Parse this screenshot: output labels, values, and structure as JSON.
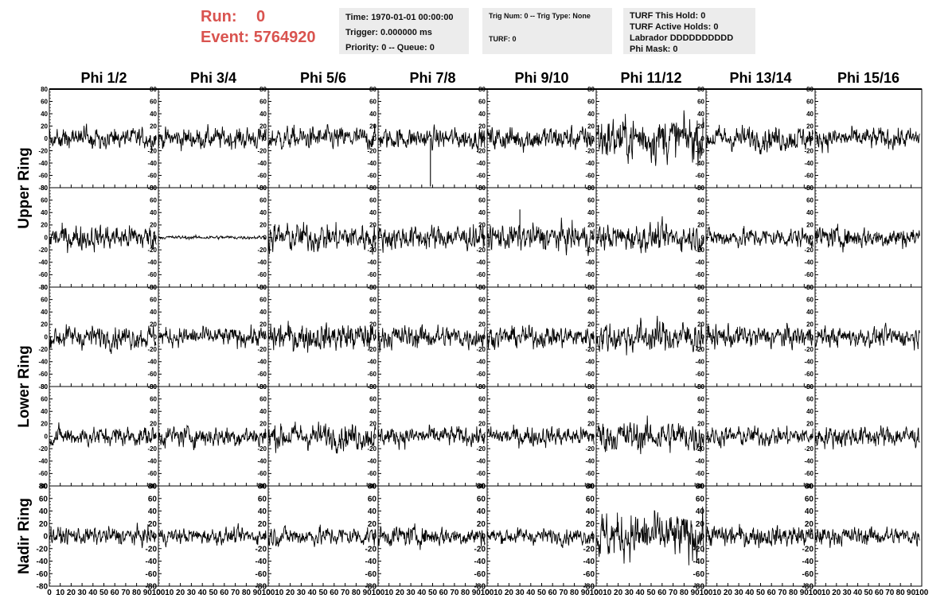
{
  "header": {
    "run_label": "Run:",
    "run_value": "0",
    "event_label": "Event:",
    "event_value": "5764920"
  },
  "info": {
    "time": "Time: 1970-01-01 00:00:00",
    "trigger": "Trigger: 0.000000 ms",
    "priority": "Priority: 0 -- Queue: 0",
    "trig_num": "Trig Num: 0 -- Trig Type: None",
    "turf": "TURF: 0",
    "turf_this_hold": "TURF This Hold: 0",
    "turf_active_holds": "TURF Active Holds: 0",
    "labrador": "Labrador DDDDDDDDDD",
    "phi_mask": "Phi Mask: 0"
  },
  "chart_data": {
    "type": "line",
    "columns": [
      "Phi 1/2",
      "Phi 3/4",
      "Phi 5/6",
      "Phi 7/8",
      "Phi 9/10",
      "Phi 11/12",
      "Phi 13/14",
      "Phi 15/16"
    ],
    "row_groups": [
      "Upper Ring",
      "Lower Ring",
      "Nadir Ring"
    ],
    "rows": 5,
    "row_group_spans": [
      [
        0,
        1
      ],
      [
        2,
        3
      ],
      [
        4,
        4
      ]
    ],
    "xlim": [
      0,
      100
    ],
    "x_ticks": [
      0,
      10,
      20,
      30,
      40,
      50,
      60,
      70,
      80,
      90,
      100
    ],
    "ylim": [
      -80,
      80
    ],
    "y_ticks": [
      -80,
      -60,
      -40,
      -20,
      0,
      20,
      40,
      60,
      80
    ],
    "samples_per_trace": 260,
    "amplitudes": [
      [
        12,
        12,
        13,
        12,
        14,
        25,
        14,
        12
      ],
      [
        14,
        2,
        16,
        14,
        15,
        15,
        11,
        12
      ],
      [
        13,
        11,
        16,
        13,
        12,
        18,
        13,
        11
      ],
      [
        11,
        12,
        15,
        11,
        11,
        18,
        11,
        12
      ],
      [
        10,
        9,
        11,
        11,
        9,
        26,
        12,
        10
      ]
    ],
    "spikes": [
      {
        "row": 0,
        "col": 3,
        "x": 48,
        "y": -78
      },
      {
        "row": 1,
        "col": 4,
        "x": 30,
        "y": 45
      }
    ],
    "line_color": "#000000"
  }
}
